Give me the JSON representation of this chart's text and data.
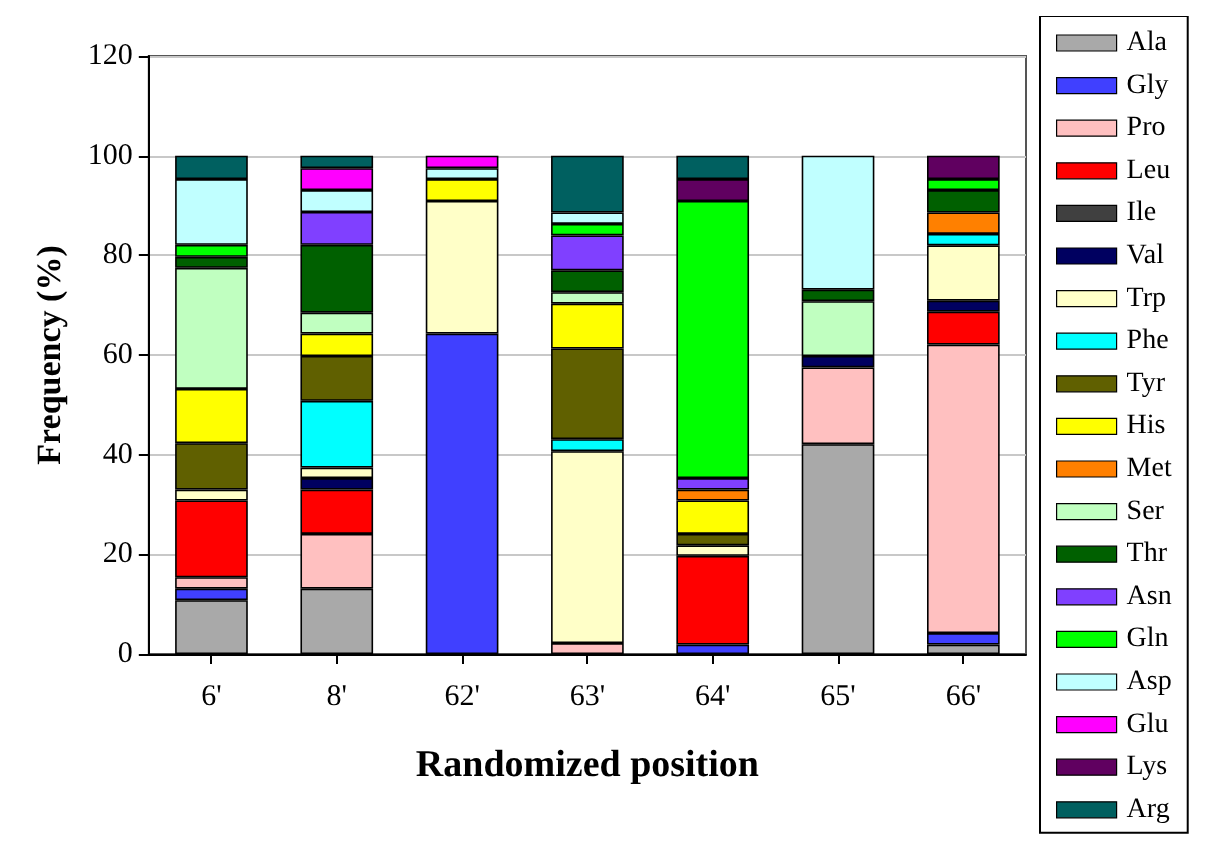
{
  "chart_data": {
    "type": "bar",
    "stacked": true,
    "xlabel": "Randomized position",
    "ylabel": "Frequency (%)",
    "categories": [
      "6'",
      "8'",
      "62'",
      "63'",
      "64'",
      "65'",
      "66'"
    ],
    "ylim": [
      0,
      120
    ],
    "yticks": [
      0,
      20,
      40,
      60,
      80,
      100,
      120
    ],
    "grid": "y",
    "legend": "right",
    "series": [
      {
        "name": "Ala",
        "color": "#a9a9a9",
        "values": [
          10.8,
          13.1,
          null,
          null,
          null,
          42.1,
          1.9
        ]
      },
      {
        "name": "Gly",
        "color": "#4040ff",
        "values": [
          2.3,
          null,
          64.3,
          null,
          1.9,
          null,
          2.3
        ]
      },
      {
        "name": "Pro",
        "color": "#ffc0c0",
        "values": [
          2.3,
          11.0,
          null,
          2.2,
          null,
          15.4,
          57.9
        ]
      },
      {
        "name": "Leu",
        "color": "#ff0000",
        "values": [
          15.4,
          8.9,
          null,
          null,
          17.8,
          null,
          6.6
        ]
      },
      {
        "name": "Ile",
        "color": "#404040",
        "values": [
          null,
          null,
          null,
          null,
          null,
          null,
          null
        ]
      },
      {
        "name": "Val",
        "color": "#000060",
        "values": [
          null,
          2.3,
          null,
          null,
          null,
          2.3,
          2.2
        ]
      },
      {
        "name": "Trp",
        "color": "#ffffc8",
        "values": [
          2.2,
          2.1,
          26.6,
          38.5,
          2.1,
          null,
          11.1
        ]
      },
      {
        "name": "Phe",
        "color": "#00ffff",
        "values": [
          null,
          13.4,
          null,
          2.4,
          null,
          null,
          2.3
        ]
      },
      {
        "name": "Tyr",
        "color": "#606000",
        "values": [
          9.3,
          9.0,
          null,
          18.2,
          2.3,
          null,
          null
        ]
      },
      {
        "name": "His",
        "color": "#ffff00",
        "values": [
          10.9,
          4.5,
          4.4,
          9.0,
          6.7,
          null,
          null
        ]
      },
      {
        "name": "Met",
        "color": "#ff8000",
        "values": [
          null,
          null,
          null,
          null,
          2.2,
          null,
          4.3
        ]
      },
      {
        "name": "Ser",
        "color": "#c0ffc0",
        "values": [
          24.3,
          4.2,
          null,
          2.3,
          null,
          11.0,
          null
        ]
      },
      {
        "name": "Thr",
        "color": "#006000",
        "values": [
          2.2,
          13.6,
          null,
          4.4,
          null,
          2.3,
          4.5
        ]
      },
      {
        "name": "Asn",
        "color": "#8040ff",
        "values": [
          null,
          6.6,
          null,
          7.0,
          2.3,
          null,
          null
        ]
      },
      {
        "name": "Gln",
        "color": "#00ff00",
        "values": [
          2.4,
          null,
          null,
          2.3,
          55.6,
          null,
          2.2
        ]
      },
      {
        "name": "Asp",
        "color": "#c0ffff",
        "values": [
          13.2,
          4.4,
          2.2,
          2.3,
          null,
          26.9,
          null
        ]
      },
      {
        "name": "Glu",
        "color": "#ff00ff",
        "values": [
          null,
          4.4,
          2.5,
          null,
          null,
          null,
          null
        ]
      },
      {
        "name": "Lys",
        "color": "#600060",
        "values": [
          null,
          null,
          null,
          null,
          4.4,
          null,
          4.7
        ]
      },
      {
        "name": "Arg",
        "color": "#006060",
        "values": [
          4.7,
          2.5,
          null,
          11.4,
          4.7,
          null,
          null
        ]
      }
    ]
  }
}
